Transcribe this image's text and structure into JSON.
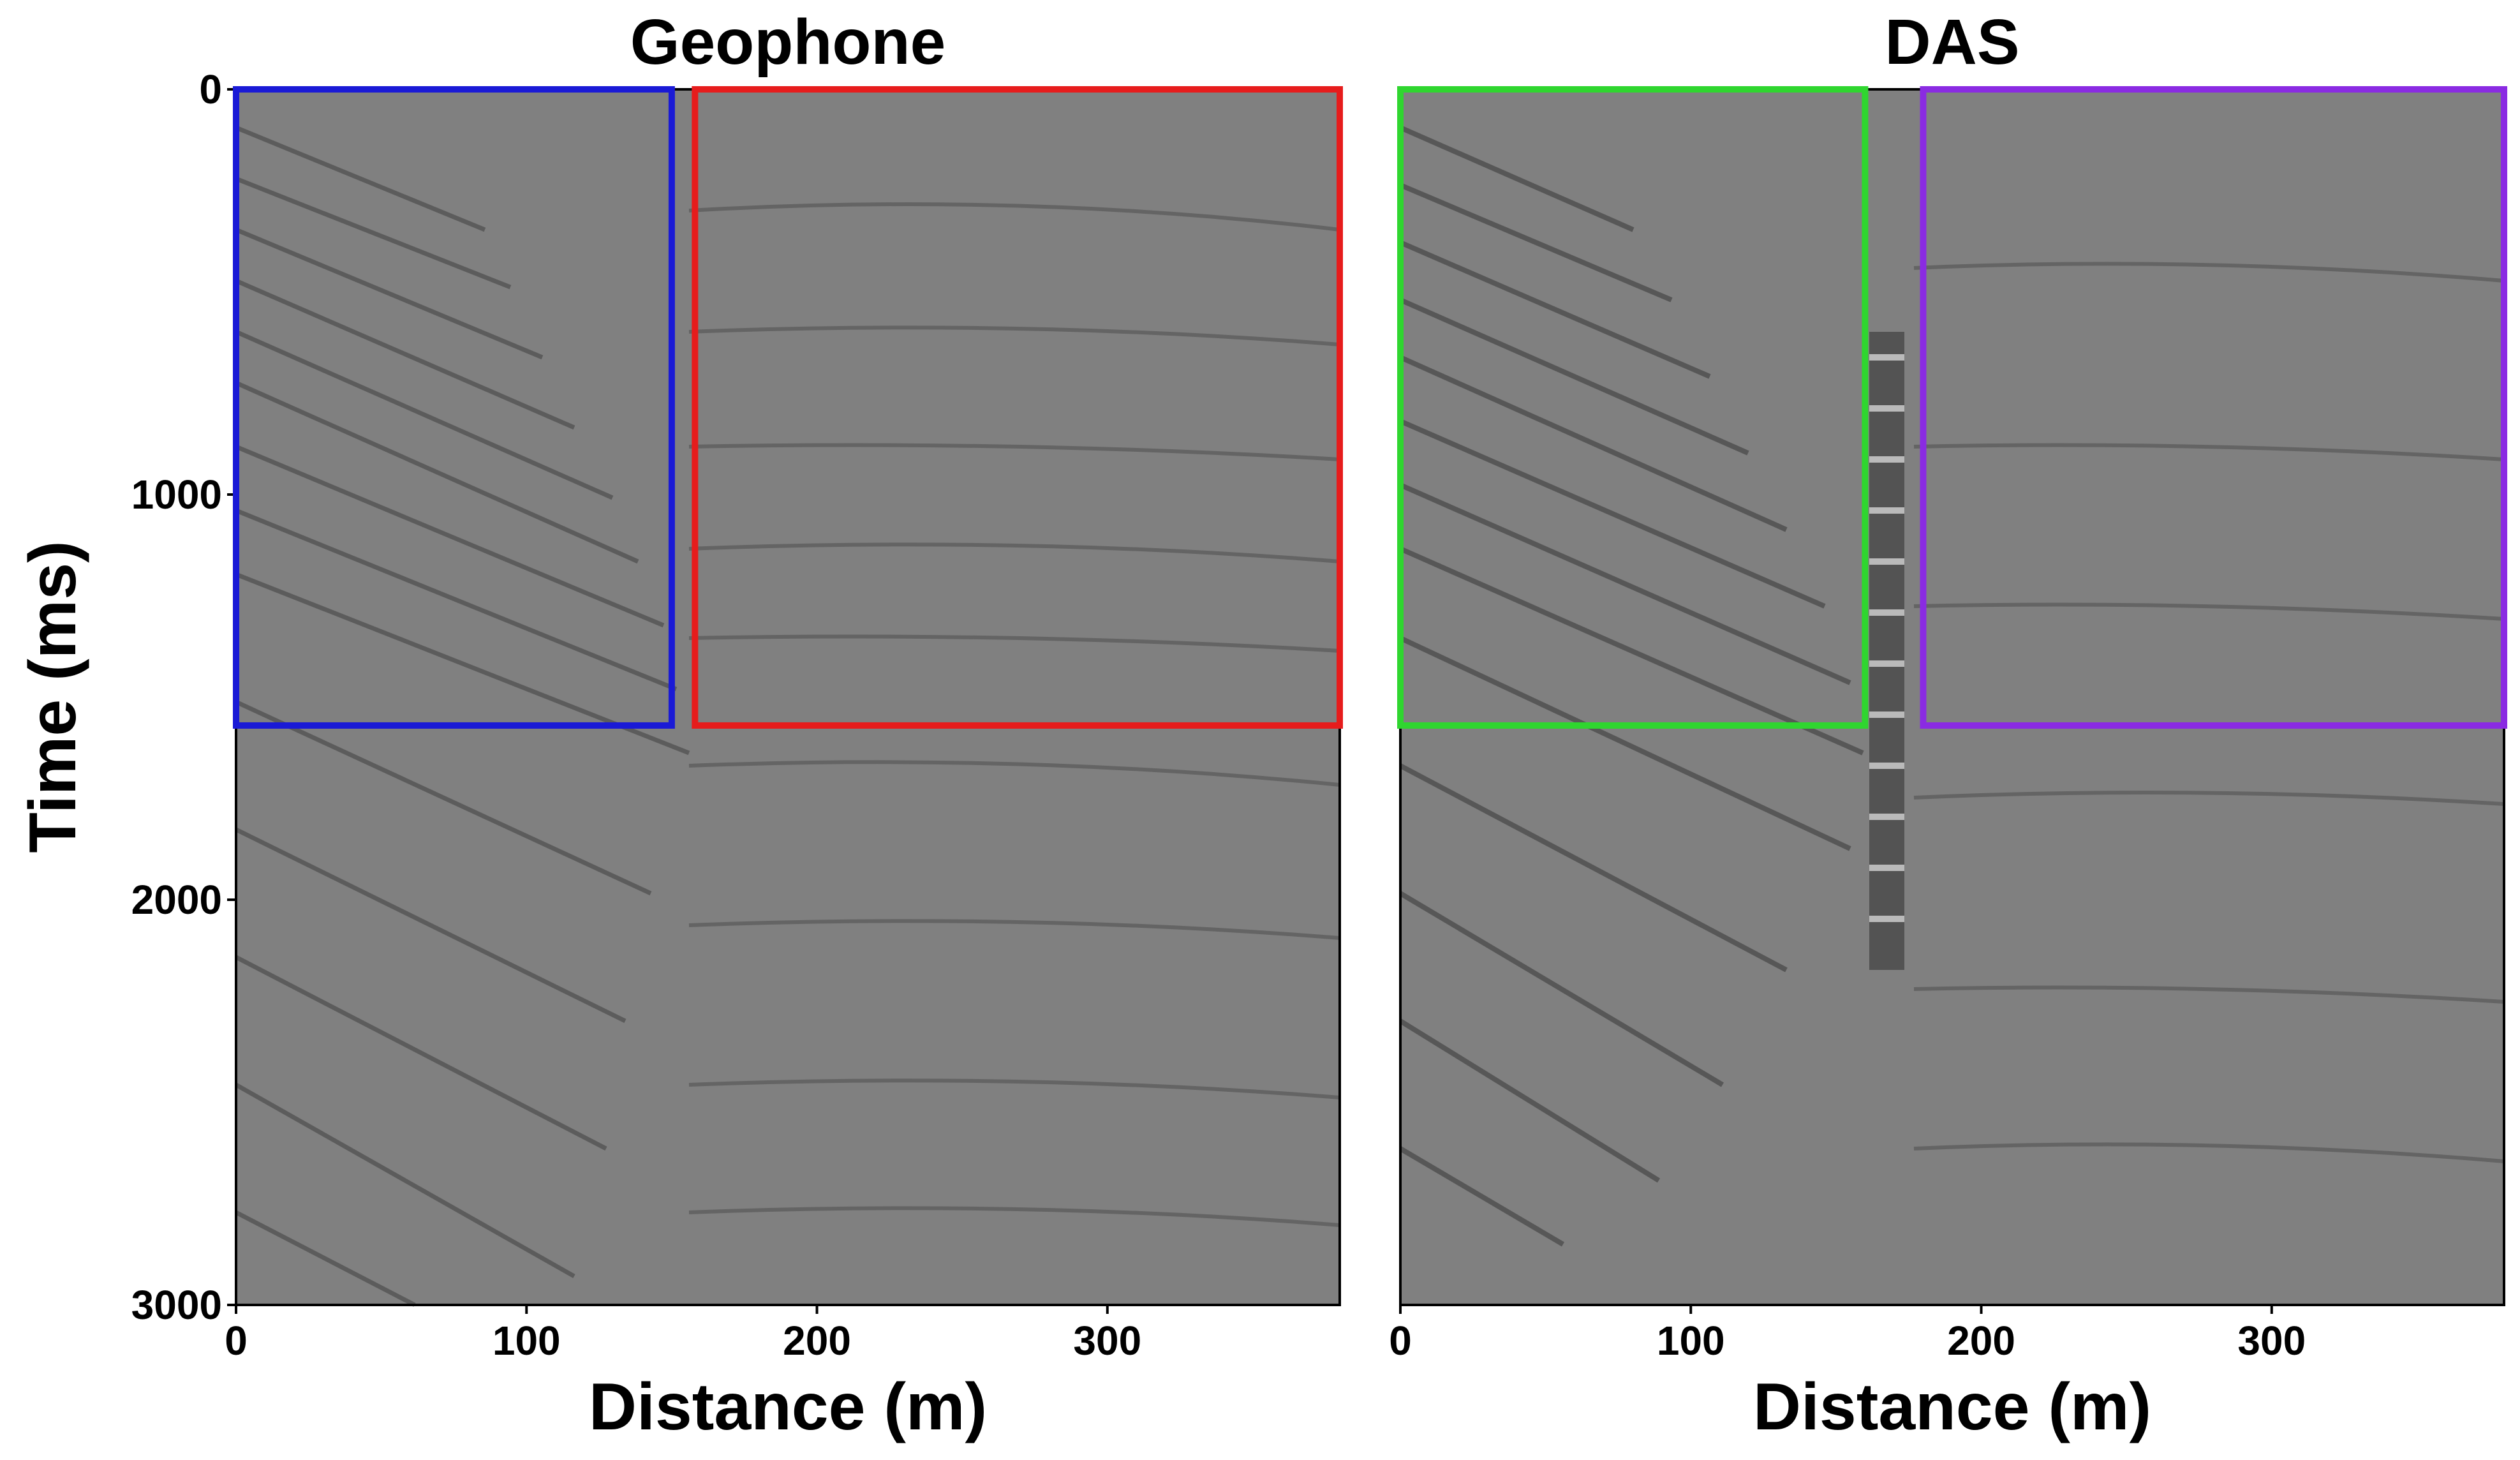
{
  "chart_data": [
    {
      "type": "heatmap",
      "title": "Geophone",
      "xlabel": "Distance (m)",
      "ylabel": "Time (ms)",
      "xlim": [
        0,
        380
      ],
      "ylim": [
        3000,
        0
      ],
      "x_ticks": [
        "0",
        "100",
        "200",
        "300"
      ],
      "y_ticks": [
        "0",
        "1000",
        "2000",
        "3000"
      ],
      "colormap": "gray",
      "grid": false,
      "boxes": [
        {
          "color": "#1a1ad6",
          "x": [
            0,
            150
          ],
          "y": [
            0,
            1570
          ]
        },
        {
          "color": "#e61c1c",
          "x": [
            158,
            380
          ],
          "y": [
            0,
            1570
          ]
        }
      ]
    },
    {
      "type": "heatmap",
      "title": "DAS",
      "xlabel": "Distance (m)",
      "ylabel": "",
      "xlim": [
        0,
        380
      ],
      "ylim": [
        3000,
        0
      ],
      "x_ticks": [
        "0",
        "100",
        "200",
        "300"
      ],
      "y_ticks": [],
      "colormap": "gray",
      "grid": false,
      "boxes": [
        {
          "color": "#2fd62f",
          "x": [
            0,
            160
          ],
          "y": [
            0,
            1570
          ]
        },
        {
          "color": "#8a2be2",
          "x": [
            180,
            380
          ],
          "y": [
            0,
            1570
          ]
        }
      ]
    }
  ]
}
